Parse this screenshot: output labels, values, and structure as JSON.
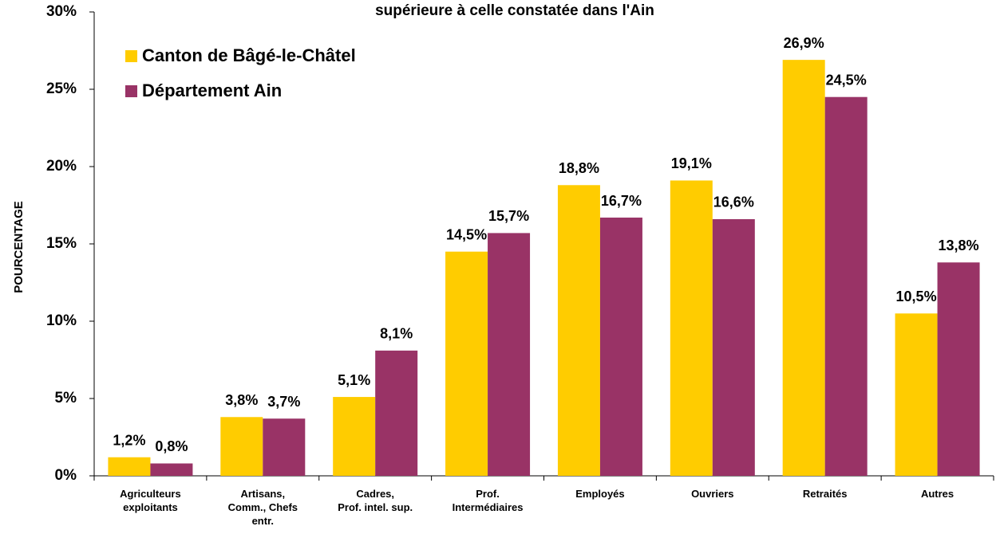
{
  "chart_data": {
    "type": "bar",
    "title": "supérieure à celle constatée dans l'Ain",
    "y_label": "POURCENTAGE",
    "categories": [
      "Agriculteurs\nexploitants",
      "Artisans,\nComm., Chefs\nentr.",
      "Cadres,\nProf. intel. sup.",
      "Prof.\nIntermédiaires",
      "Employés",
      "Ouvriers",
      "Retraités",
      "Autres"
    ],
    "series": [
      {
        "name": "Canton de Bâgé-le-Châtel",
        "color": "#FFCC00",
        "values": [
          1.2,
          3.8,
          5.1,
          14.5,
          18.8,
          19.1,
          26.9,
          10.5
        ],
        "value_labels": [
          "1,2%",
          "3,8%",
          "5,1%",
          "14,5%",
          "18,8%",
          "19,1%",
          "26,9%",
          "10,5%"
        ]
      },
      {
        "name": "Département Ain",
        "color": "#993366",
        "values": [
          0.8,
          3.7,
          8.1,
          15.7,
          16.7,
          16.6,
          24.5,
          13.8
        ],
        "value_labels": [
          "0,8%",
          "3,7%",
          "8,1%",
          "15,7%",
          "16,7%",
          "16,6%",
          "24,5%",
          "13,8%"
        ]
      }
    ],
    "ylim": [
      0,
      30
    ],
    "yticks": [
      {
        "value": 0,
        "label": "0%"
      },
      {
        "value": 5,
        "label": "5%"
      },
      {
        "value": 10,
        "label": "10%"
      },
      {
        "value": 15,
        "label": "15%"
      },
      {
        "value": 20,
        "label": "20%"
      },
      {
        "value": 25,
        "label": "25%"
      },
      {
        "value": 30,
        "label": "30%"
      }
    ],
    "grid": false,
    "legend": "top-left"
  }
}
